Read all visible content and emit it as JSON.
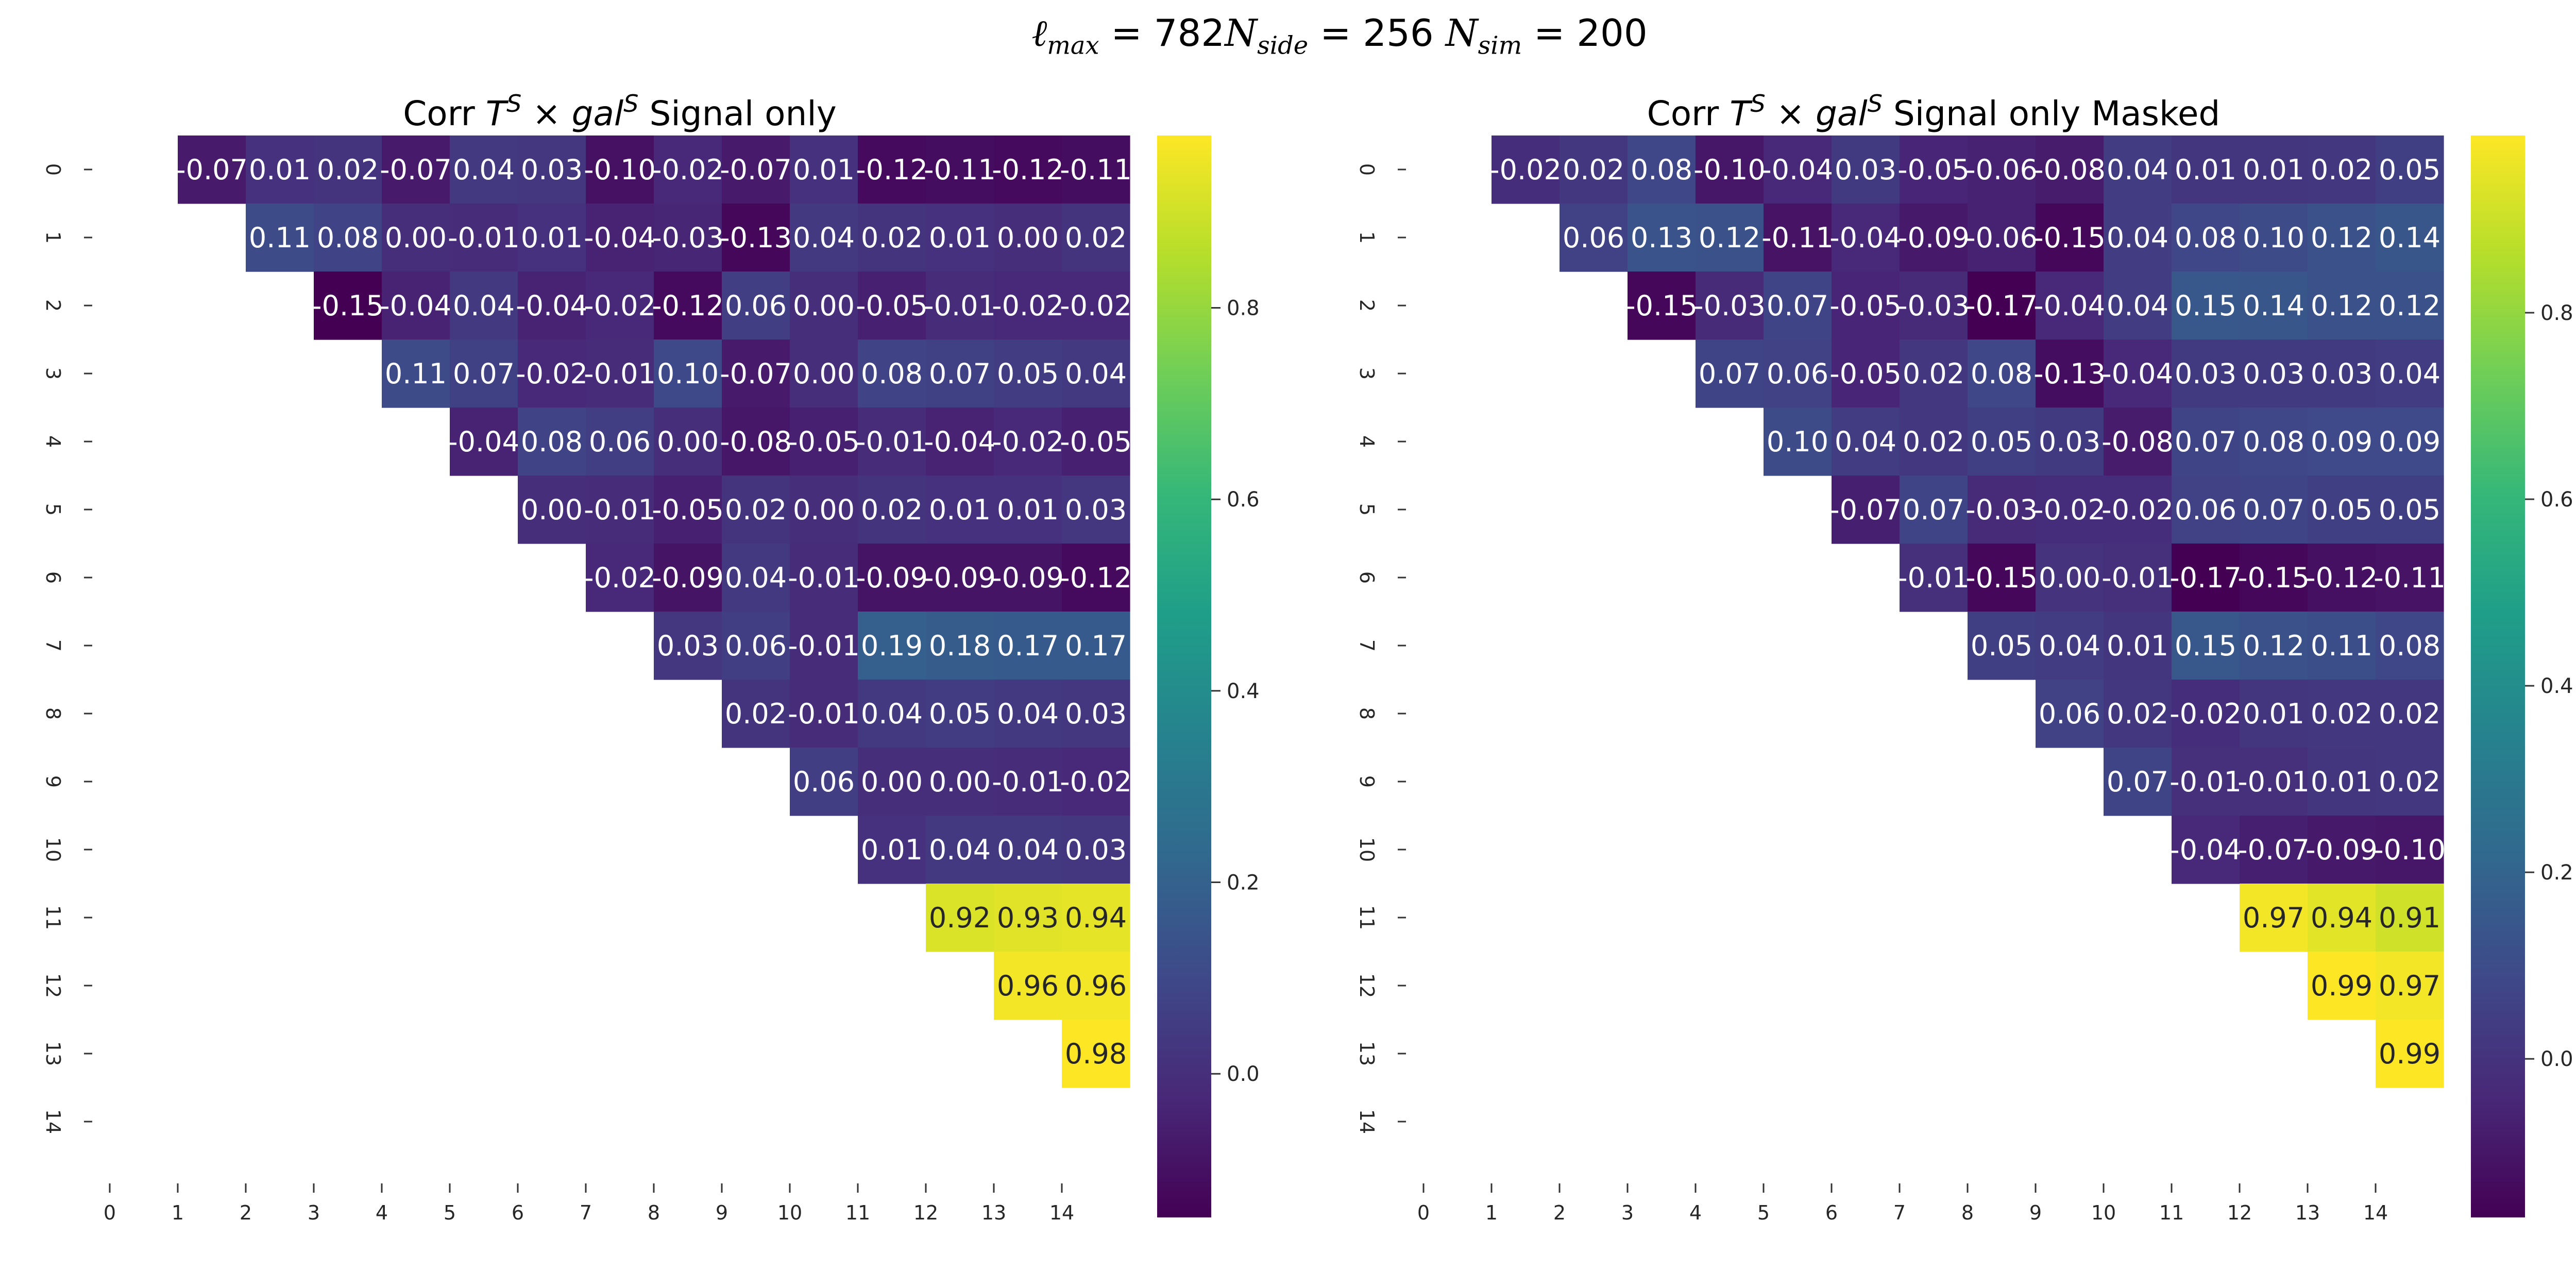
{
  "suptitle": {
    "lmax_symbol": "ℓ",
    "lmax_sub": "max",
    "lmax_value": " = 782",
    "nside_symbol": "N",
    "nside_sub": "side",
    "nside_value": " = 256 ",
    "nsim_symbol": "N",
    "nsim_sub": "sim",
    "nsim_value": " = 200"
  },
  "colorscale": {
    "name": "viridis",
    "stops": [
      "#440154",
      "#482878",
      "#3e4989",
      "#31688e",
      "#26828e",
      "#1f9e89",
      "#35b779",
      "#6ece58",
      "#b5de2b",
      "#fde725"
    ]
  },
  "chart_data": [
    {
      "type": "heatmap",
      "title_prefix": "Corr ",
      "title_t": "T",
      "title_t_sup": "S",
      "title_times": " × ",
      "title_gal": "gal",
      "title_gal_sup": "S",
      "title_suffix": " Signal only",
      "x_ticks": [
        "0",
        "1",
        "2",
        "3",
        "4",
        "5",
        "6",
        "7",
        "8",
        "9",
        "10",
        "11",
        "12",
        "13",
        "14"
      ],
      "y_ticks": [
        "0",
        "1",
        "2",
        "3",
        "4",
        "5",
        "6",
        "7",
        "8",
        "9",
        "10",
        "11",
        "12",
        "13",
        "14"
      ],
      "colorbar_ticks": [
        0.0,
        0.2,
        0.4,
        0.6,
        0.8
      ],
      "vmin": -0.15,
      "vmax": 0.98,
      "values": [
        [
          null,
          -0.07,
          0.01,
          0.02,
          -0.07,
          0.04,
          0.03,
          -0.1,
          -0.02,
          -0.07,
          0.01,
          -0.12,
          -0.11,
          -0.12,
          -0.11
        ],
        [
          null,
          null,
          0.11,
          0.08,
          0.0,
          -0.01,
          0.01,
          -0.04,
          -0.03,
          -0.13,
          0.04,
          0.02,
          0.01,
          0.0,
          0.02
        ],
        [
          null,
          null,
          null,
          -0.15,
          -0.04,
          0.04,
          -0.04,
          -0.02,
          -0.12,
          0.06,
          0.0,
          -0.05,
          -0.01,
          -0.02,
          -0.02
        ],
        [
          null,
          null,
          null,
          null,
          0.11,
          0.07,
          -0.02,
          -0.01,
          0.1,
          -0.07,
          0.0,
          0.08,
          0.07,
          0.05,
          0.04
        ],
        [
          null,
          null,
          null,
          null,
          null,
          -0.04,
          0.08,
          0.06,
          0.0,
          -0.08,
          -0.05,
          -0.01,
          -0.04,
          -0.02,
          -0.05
        ],
        [
          null,
          null,
          null,
          null,
          null,
          null,
          0.0,
          -0.01,
          -0.05,
          0.02,
          -0.0,
          0.02,
          0.01,
          0.01,
          0.03
        ],
        [
          null,
          null,
          null,
          null,
          null,
          null,
          null,
          -0.02,
          -0.09,
          0.04,
          -0.01,
          -0.09,
          -0.09,
          -0.09,
          -0.12
        ],
        [
          null,
          null,
          null,
          null,
          null,
          null,
          null,
          null,
          0.03,
          0.06,
          -0.01,
          0.19,
          0.18,
          0.17,
          0.17
        ],
        [
          null,
          null,
          null,
          null,
          null,
          null,
          null,
          null,
          null,
          0.02,
          -0.01,
          0.04,
          0.05,
          0.04,
          0.03
        ],
        [
          null,
          null,
          null,
          null,
          null,
          null,
          null,
          null,
          null,
          null,
          0.06,
          -0.0,
          0.0,
          -0.01,
          -0.02
        ],
        [
          null,
          null,
          null,
          null,
          null,
          null,
          null,
          null,
          null,
          null,
          null,
          0.01,
          0.04,
          0.04,
          0.03
        ],
        [
          null,
          null,
          null,
          null,
          null,
          null,
          null,
          null,
          null,
          null,
          null,
          null,
          0.92,
          0.93,
          0.94
        ],
        [
          null,
          null,
          null,
          null,
          null,
          null,
          null,
          null,
          null,
          null,
          null,
          null,
          null,
          0.96,
          0.96
        ],
        [
          null,
          null,
          null,
          null,
          null,
          null,
          null,
          null,
          null,
          null,
          null,
          null,
          null,
          null,
          0.98
        ],
        [
          null,
          null,
          null,
          null,
          null,
          null,
          null,
          null,
          null,
          null,
          null,
          null,
          null,
          null,
          null
        ]
      ]
    },
    {
      "type": "heatmap",
      "title_prefix": "Corr ",
      "title_t": "T",
      "title_t_sup": "S",
      "title_times": " × ",
      "title_gal": "gal",
      "title_gal_sup": "S",
      "title_suffix": " Signal only Masked",
      "x_ticks": [
        "0",
        "1",
        "2",
        "3",
        "4",
        "5",
        "6",
        "7",
        "8",
        "9",
        "10",
        "11",
        "12",
        "13",
        "14"
      ],
      "y_ticks": [
        "0",
        "1",
        "2",
        "3",
        "4",
        "5",
        "6",
        "7",
        "8",
        "9",
        "10",
        "11",
        "12",
        "13",
        "14"
      ],
      "colorbar_ticks": [
        0.0,
        0.2,
        0.4,
        0.6,
        0.8
      ],
      "vmin": -0.17,
      "vmax": 0.99,
      "values": [
        [
          null,
          -0.02,
          0.02,
          0.08,
          -0.1,
          -0.04,
          0.03,
          -0.05,
          -0.06,
          -0.08,
          0.04,
          0.01,
          0.01,
          0.02,
          0.05
        ],
        [
          null,
          null,
          0.06,
          0.13,
          0.12,
          -0.11,
          -0.04,
          -0.09,
          -0.06,
          -0.15,
          0.04,
          0.08,
          0.1,
          0.12,
          0.14
        ],
        [
          null,
          null,
          null,
          -0.15,
          -0.03,
          0.07,
          -0.05,
          -0.03,
          -0.17,
          -0.04,
          0.04,
          0.15,
          0.14,
          0.12,
          0.12
        ],
        [
          null,
          null,
          null,
          null,
          0.07,
          0.06,
          -0.05,
          0.02,
          0.08,
          -0.13,
          -0.04,
          0.03,
          0.03,
          0.03,
          0.04
        ],
        [
          null,
          null,
          null,
          null,
          null,
          0.1,
          0.04,
          0.02,
          0.05,
          0.03,
          -0.08,
          0.07,
          0.08,
          0.09,
          0.09
        ],
        [
          null,
          null,
          null,
          null,
          null,
          null,
          -0.07,
          0.07,
          -0.03,
          -0.02,
          -0.02,
          0.06,
          0.07,
          0.05,
          0.05
        ],
        [
          null,
          null,
          null,
          null,
          null,
          null,
          null,
          -0.01,
          -0.15,
          0.0,
          -0.01,
          -0.17,
          -0.15,
          -0.12,
          -0.11
        ],
        [
          null,
          null,
          null,
          null,
          null,
          null,
          null,
          null,
          0.05,
          0.04,
          0.01,
          0.15,
          0.12,
          0.11,
          0.08
        ],
        [
          null,
          null,
          null,
          null,
          null,
          null,
          null,
          null,
          null,
          0.06,
          0.02,
          -0.02,
          0.01,
          0.02,
          0.02
        ],
        [
          null,
          null,
          null,
          null,
          null,
          null,
          null,
          null,
          null,
          null,
          0.07,
          -0.01,
          -0.01,
          0.01,
          0.02
        ],
        [
          null,
          null,
          null,
          null,
          null,
          null,
          null,
          null,
          null,
          null,
          null,
          -0.04,
          -0.07,
          -0.09,
          -0.1
        ],
        [
          null,
          null,
          null,
          null,
          null,
          null,
          null,
          null,
          null,
          null,
          null,
          null,
          0.97,
          0.94,
          0.91
        ],
        [
          null,
          null,
          null,
          null,
          null,
          null,
          null,
          null,
          null,
          null,
          null,
          null,
          null,
          0.99,
          0.97
        ],
        [
          null,
          null,
          null,
          null,
          null,
          null,
          null,
          null,
          null,
          null,
          null,
          null,
          null,
          null,
          0.99
        ],
        [
          null,
          null,
          null,
          null,
          null,
          null,
          null,
          null,
          null,
          null,
          null,
          null,
          null,
          null,
          null
        ]
      ]
    }
  ]
}
